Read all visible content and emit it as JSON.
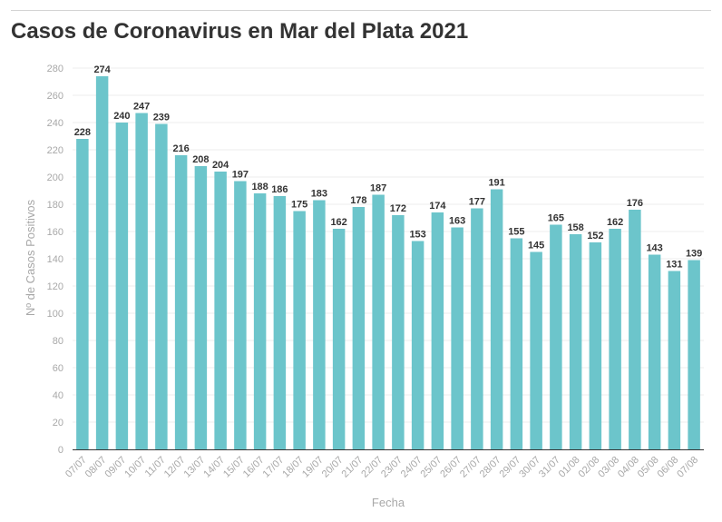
{
  "chart_data": {
    "type": "bar",
    "title": "Casos de Coronavirus en Mar del Plata 2021",
    "xlabel": "Fecha",
    "ylabel": "Nº de Casos Positivos",
    "ylim": [
      0,
      280
    ],
    "yticks": [
      0,
      20,
      40,
      60,
      80,
      100,
      120,
      140,
      160,
      180,
      200,
      220,
      240,
      260,
      280
    ],
    "grid": true,
    "bar_color": "#6cc5cb",
    "categories": [
      "07/07",
      "08/07",
      "09/07",
      "10/07",
      "11/07",
      "12/07",
      "13/07",
      "14/07",
      "15/07",
      "16/07",
      "17/07",
      "18/07",
      "19/07",
      "20/07",
      "21/07",
      "22/07",
      "23/07",
      "24/07",
      "25/07",
      "26/07",
      "27/07",
      "28/07",
      "29/07",
      "30/07",
      "31/07",
      "01/08",
      "02/08",
      "03/08",
      "04/08",
      "05/08",
      "06/08",
      "07/08"
    ],
    "values": [
      228,
      274,
      240,
      247,
      239,
      216,
      208,
      204,
      197,
      188,
      186,
      175,
      183,
      162,
      178,
      187,
      172,
      153,
      174,
      163,
      177,
      191,
      155,
      145,
      165,
      158,
      152,
      162,
      176,
      143,
      131,
      139
    ]
  }
}
